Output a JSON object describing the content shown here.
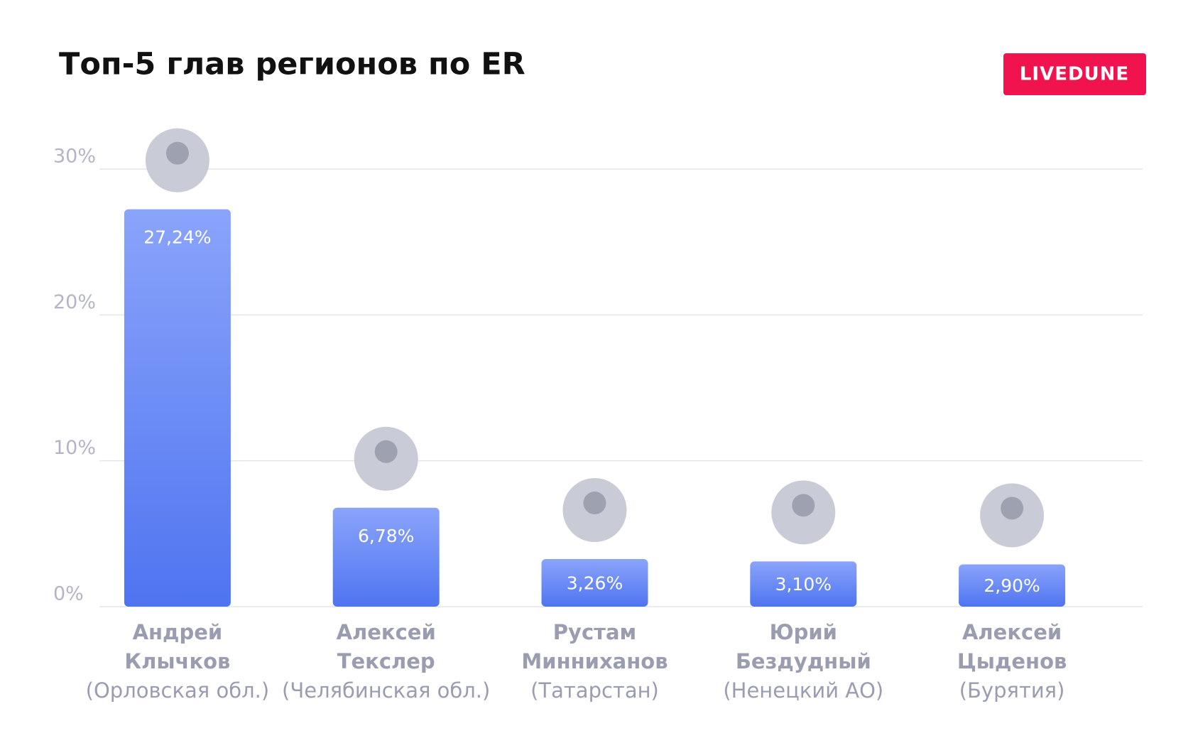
{
  "chart_data": {
    "type": "bar",
    "title": "Топ-5 глав регионов по ER",
    "brand": "LIVEDUNE",
    "categories": [
      [
        "Андрей",
        "Клычков",
        "(Орловская обл.)"
      ],
      [
        "Алексей",
        "Текслер",
        "(Челябинская обл.)"
      ],
      [
        "Рустам",
        "Минниханов",
        "(Татарстан)"
      ],
      [
        "Юрий",
        "Бездудный",
        "(Ненецкий АО)"
      ],
      [
        "Алексей",
        "Цыденов",
        "(Бурятия)"
      ]
    ],
    "values": [
      27.24,
      6.78,
      3.26,
      3.1,
      2.9
    ],
    "value_labels": [
      "27,24%",
      "6,78%",
      "3,26%",
      "3,10%",
      "2,90%"
    ],
    "color": [
      "#8aa4fb",
      "#4f74f0"
    ],
    "ylim": [
      0,
      30
    ],
    "yticks": [
      {
        "value": 0,
        "label": "0%"
      },
      {
        "value": 10,
        "label": "10%"
      },
      {
        "value": 20,
        "label": "20%"
      },
      {
        "value": 30,
        "label": "30%"
      }
    ],
    "grid": true
  }
}
